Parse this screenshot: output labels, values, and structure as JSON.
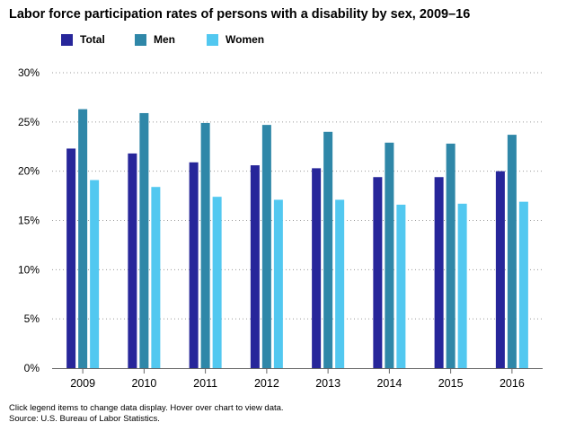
{
  "colors": {
    "total": "#27269a",
    "men": "#2f87a8",
    "women": "#52c8f0"
  },
  "footer": {
    "note": "Click legend items to change data display. Hover over chart to view data.",
    "source": "Source: U.S. Bureau of Labor Statistics."
  },
  "chart_data": {
    "type": "bar",
    "title": "Labor force participation rates of persons with a disability by sex, 2009–16",
    "xlabel": "",
    "ylabel": "",
    "categories": [
      "2009",
      "2010",
      "2011",
      "2012",
      "2013",
      "2014",
      "2015",
      "2016"
    ],
    "series": [
      {
        "name": "Total",
        "color": "#27269a",
        "values": [
          22.3,
          21.8,
          20.9,
          20.6,
          20.3,
          19.4,
          19.4,
          20.0
        ]
      },
      {
        "name": "Men",
        "color": "#2f87a8",
        "values": [
          26.3,
          25.9,
          24.9,
          24.7,
          24.0,
          22.9,
          22.8,
          23.7
        ]
      },
      {
        "name": "Women",
        "color": "#52c8f0",
        "values": [
          19.1,
          18.4,
          17.4,
          17.1,
          17.1,
          16.6,
          16.7,
          16.9
        ]
      }
    ],
    "ylim": [
      0,
      30
    ],
    "yticks": [
      0,
      5,
      10,
      15,
      20,
      25,
      30
    ],
    "ytick_labels": [
      "0%",
      "5%",
      "10%",
      "15%",
      "20%",
      "25%",
      "30%"
    ],
    "grid": true,
    "legend": "top-left"
  }
}
